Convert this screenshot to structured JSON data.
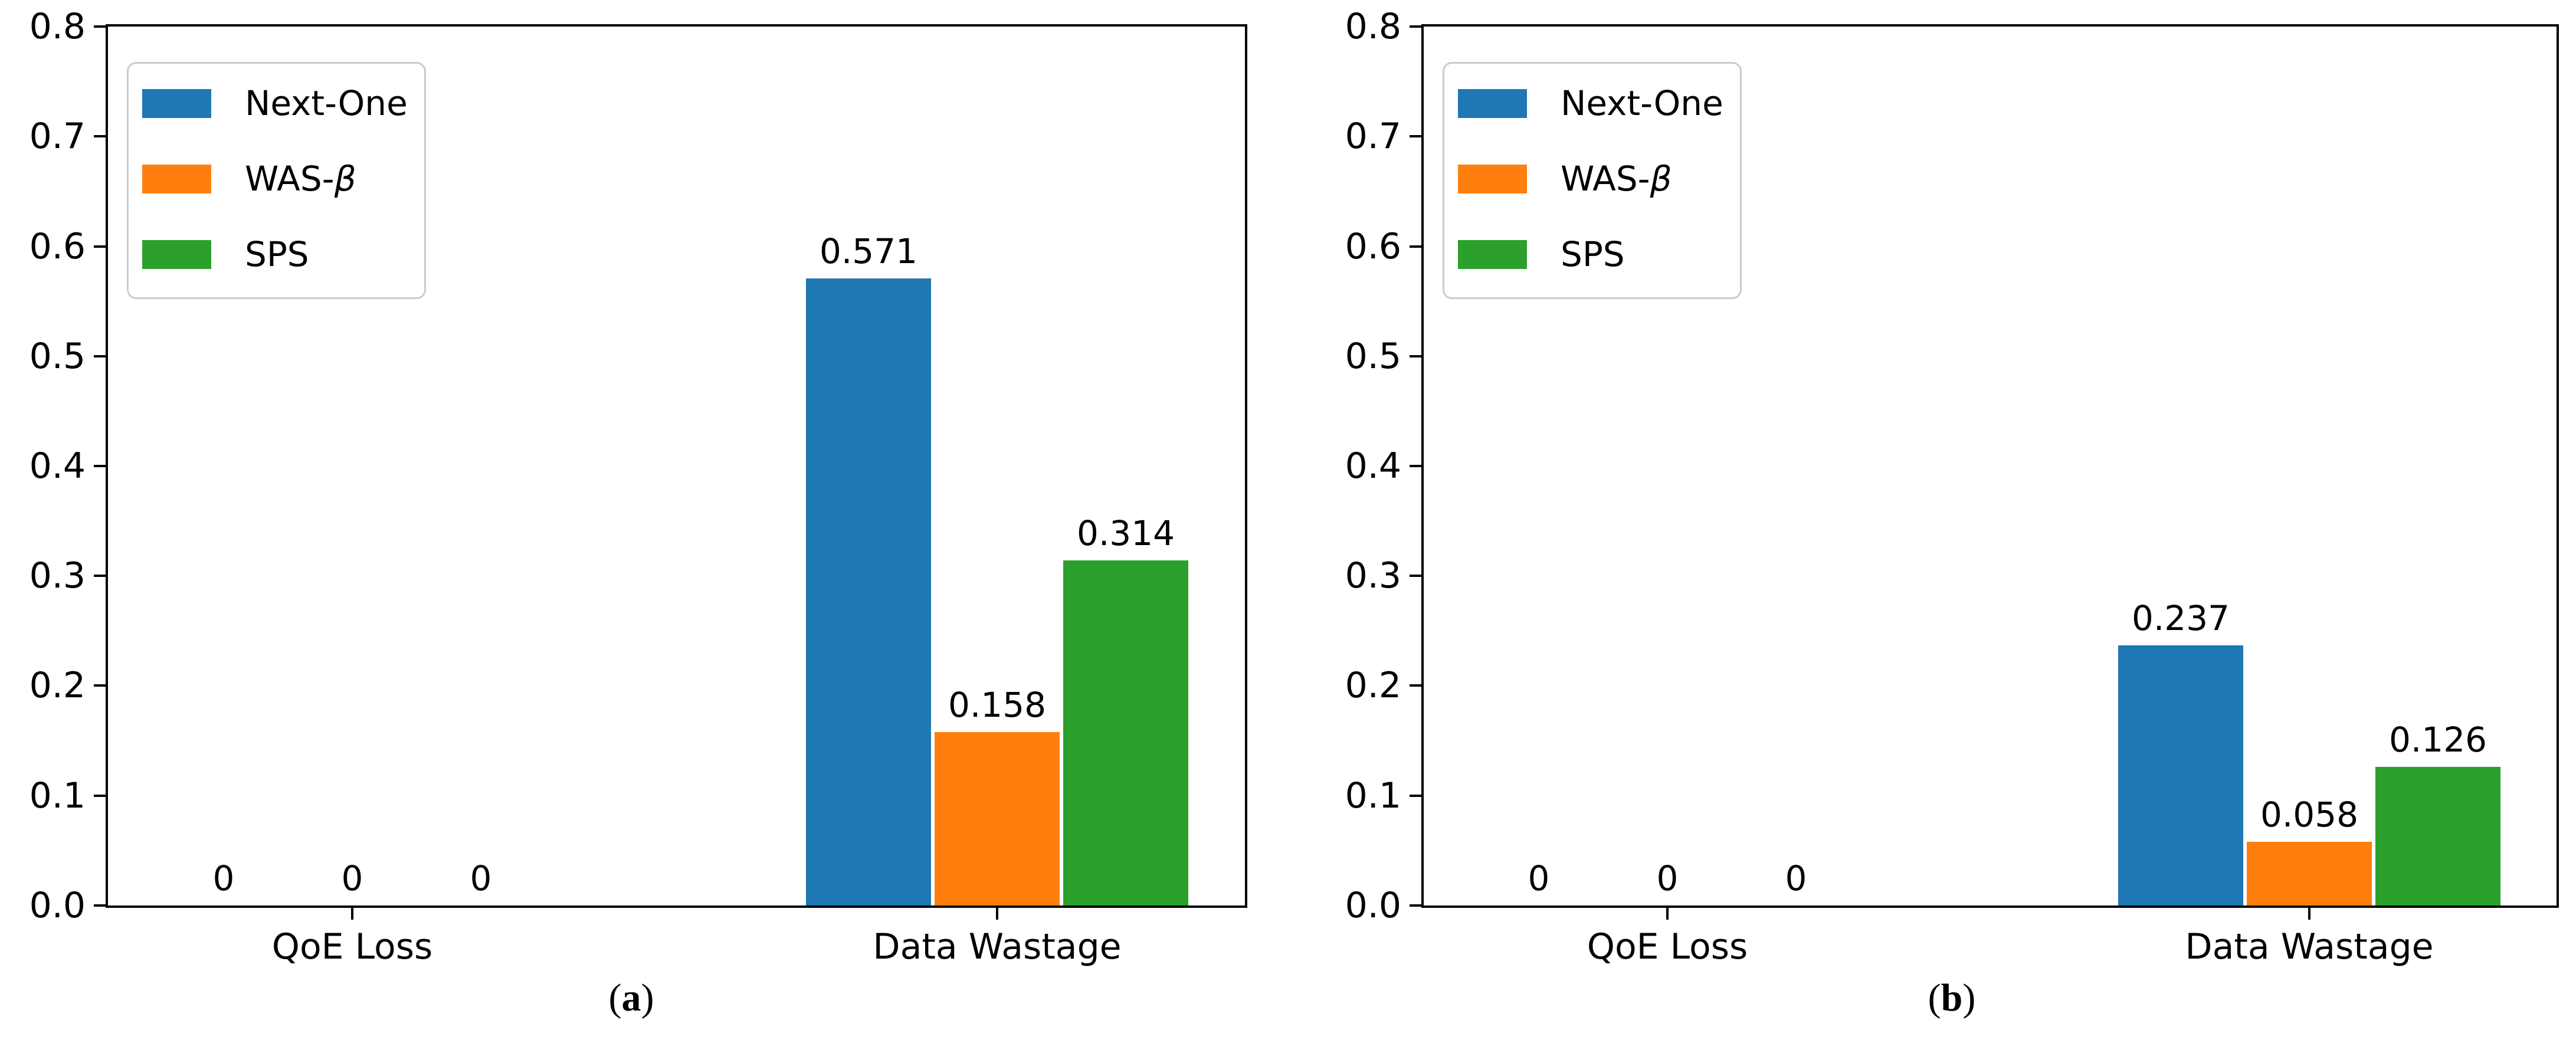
{
  "figure": {
    "background": "#ffffff"
  },
  "palette": {
    "next_one": "#1f77b4",
    "was_beta": "#ff7f0e",
    "sps": "#2ca02c",
    "axis": "#000000",
    "legend_border": "#cbcbcb",
    "text": "#000000"
  },
  "chart_data": [
    {
      "type": "bar",
      "caption": "(a)",
      "categories": [
        "QoE Loss",
        "Data Wastage"
      ],
      "ylim": [
        0,
        0.8
      ],
      "yticks": [
        0.0,
        0.1,
        0.2,
        0.3,
        0.4,
        0.5,
        0.6,
        0.7,
        0.8
      ],
      "ytick_labels": [
        "0.0",
        "0.1",
        "0.2",
        "0.3",
        "0.4",
        "0.5",
        "0.6",
        "0.7",
        "0.8"
      ],
      "grid": false,
      "legend_position": "upper-left",
      "series": [
        {
          "name": "Next-One",
          "color": "#1f77b4",
          "hatch": "diagonal-stripes",
          "values": [
            0,
            0.571
          ],
          "value_labels": [
            "0",
            "0.571"
          ]
        },
        {
          "name": "WAS-β",
          "color": "#ff7f0e",
          "hatch": "dots",
          "values": [
            0,
            0.158
          ],
          "value_labels": [
            "0",
            "0.158"
          ]
        },
        {
          "name": "SPS",
          "color": "#2ca02c",
          "hatch": "none",
          "values": [
            0,
            0.314
          ],
          "value_labels": [
            "0",
            "0.314"
          ]
        }
      ]
    },
    {
      "type": "bar",
      "caption": "(b)",
      "categories": [
        "QoE Loss",
        "Data Wastage"
      ],
      "ylim": [
        0,
        0.8
      ],
      "yticks": [
        0.0,
        0.1,
        0.2,
        0.3,
        0.4,
        0.5,
        0.6,
        0.7,
        0.8
      ],
      "ytick_labels": [
        "0.0",
        "0.1",
        "0.2",
        "0.3",
        "0.4",
        "0.5",
        "0.6",
        "0.7",
        "0.8"
      ],
      "grid": false,
      "legend_position": "upper-left",
      "series": [
        {
          "name": "Next-One",
          "color": "#1f77b4",
          "hatch": "diagonal-stripes",
          "values": [
            0,
            0.237
          ],
          "value_labels": [
            "0",
            "0.237"
          ]
        },
        {
          "name": "WAS-β",
          "color": "#ff7f0e",
          "hatch": "dots",
          "values": [
            0,
            0.058
          ],
          "value_labels": [
            "0",
            "0.058"
          ]
        },
        {
          "name": "SPS",
          "color": "#2ca02c",
          "hatch": "none",
          "values": [
            0,
            0.126
          ],
          "value_labels": [
            "0",
            "0.126"
          ]
        }
      ]
    }
  ]
}
